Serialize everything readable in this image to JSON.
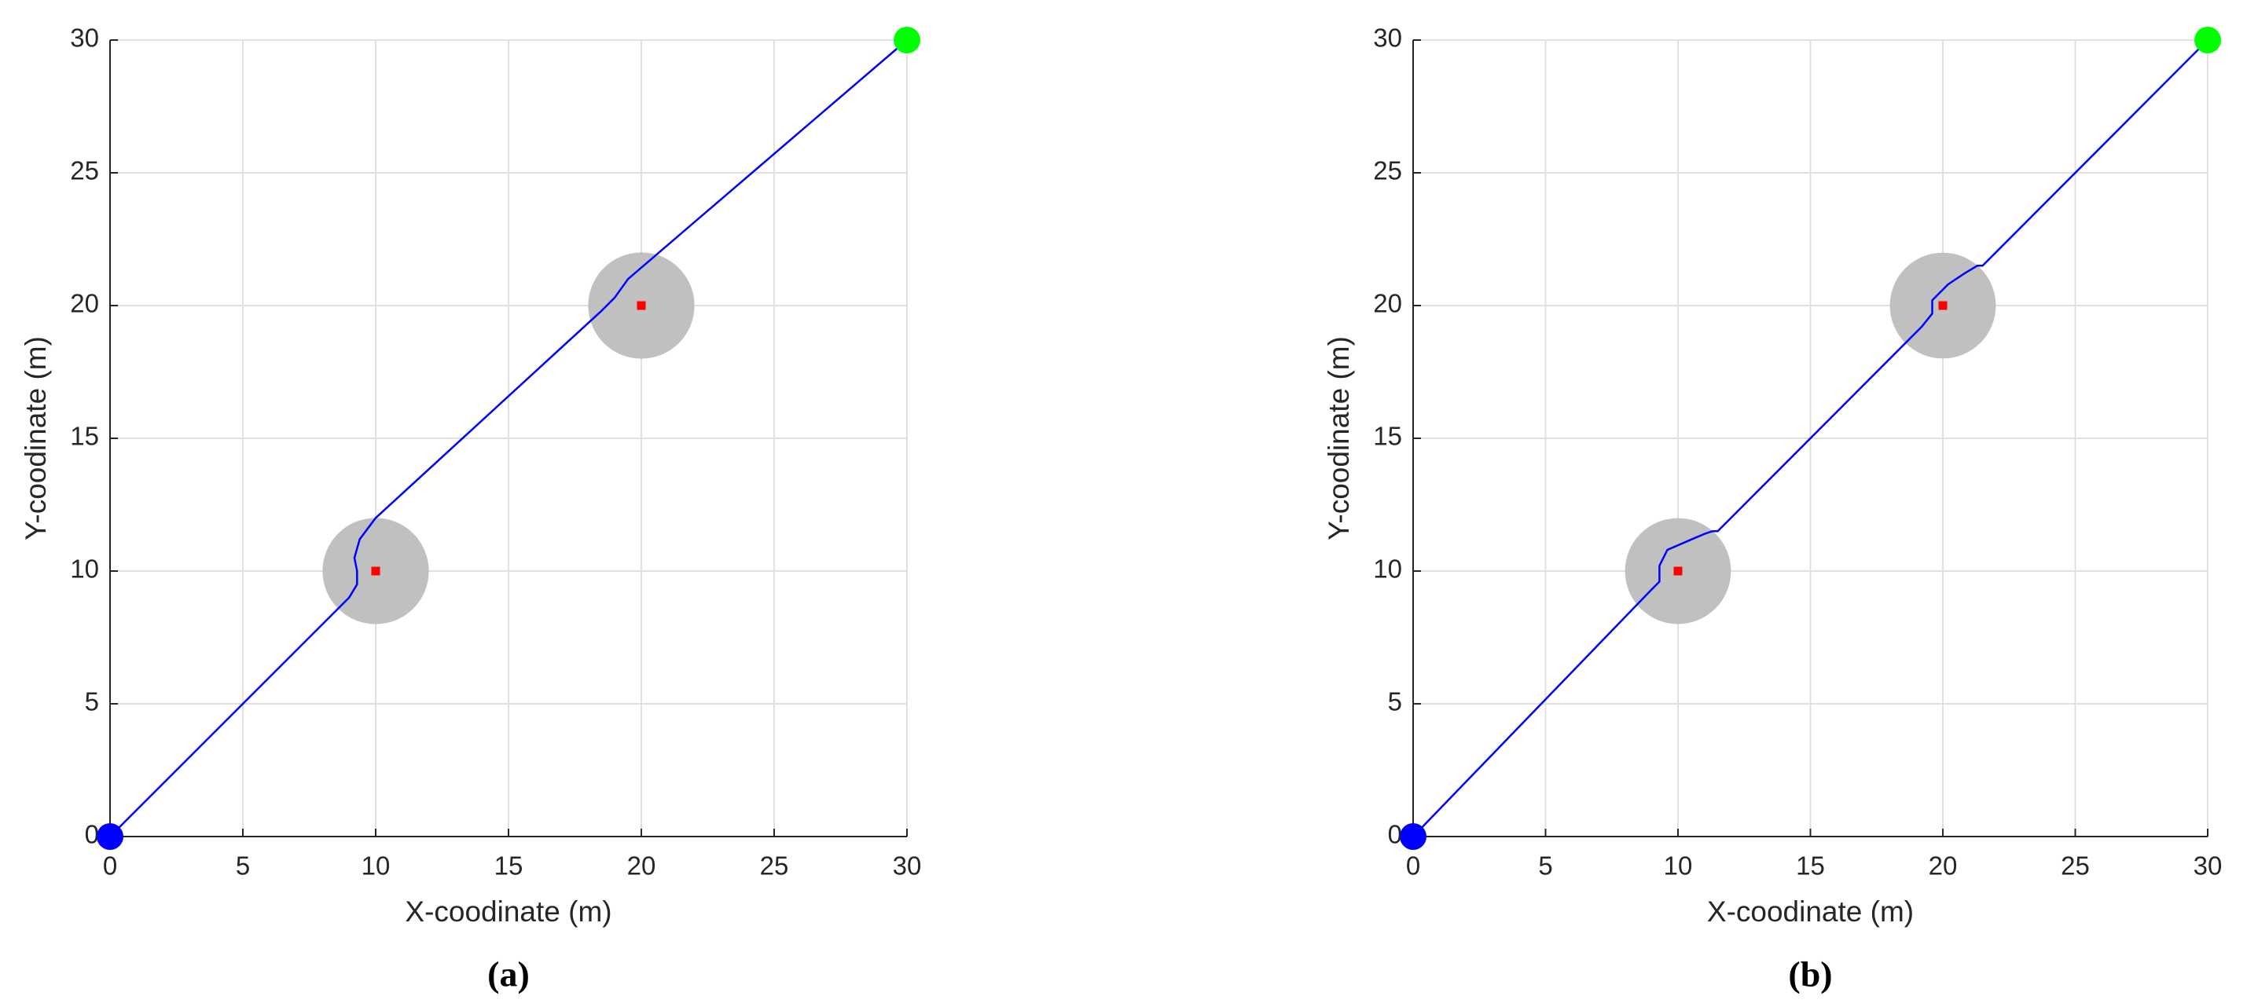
{
  "chart_data": [
    {
      "type": "line",
      "x_label": "X-coodinate (m)",
      "y_label": "Y-coodinate (m)",
      "caption": "(a)",
      "xlim": [
        0,
        30
      ],
      "ylim": [
        0,
        30
      ],
      "xticks": [
        0,
        5,
        10,
        15,
        20,
        25,
        30
      ],
      "yticks": [
        0,
        5,
        10,
        15,
        20,
        25,
        30
      ],
      "grid": true,
      "series": [
        {
          "color": "#0000ff",
          "x": [
            0,
            9,
            9.3,
            9.3,
            9.2,
            9.4,
            10,
            18.5,
            19,
            19.5,
            20.2,
            30
          ],
          "values": [
            0,
            9,
            9.5,
            10,
            10.5,
            11.2,
            12,
            19.8,
            20.3,
            21,
            21.6,
            30
          ]
        }
      ],
      "obstacles": [
        {
          "x": 10,
          "y": 10,
          "r": 2,
          "color": "#c0c0c0",
          "center_color": "#ff0000"
        },
        {
          "x": 20,
          "y": 20,
          "r": 2,
          "color": "#c0c0c0",
          "center_color": "#ff0000"
        }
      ],
      "points": [
        {
          "x": 0,
          "y": 0,
          "color": "#0000ff"
        },
        {
          "x": 30,
          "y": 30,
          "color": "#00ff00"
        }
      ]
    },
    {
      "type": "line",
      "x_label": "X-coodinate (m)",
      "y_label": "Y-coodinate (m)",
      "caption": "(b)",
      "xlim": [
        0,
        30
      ],
      "ylim": [
        0,
        30
      ],
      "xticks": [
        0,
        5,
        10,
        15,
        20,
        25,
        30
      ],
      "yticks": [
        0,
        5,
        10,
        15,
        20,
        25,
        30
      ],
      "grid": true,
      "series": [
        {
          "color": "#0000ff",
          "x": [
            0,
            9,
            9.3,
            9.3,
            9.6,
            10.3,
            11,
            11.3,
            11.5,
            19.2,
            19.6,
            19.6,
            20.2,
            20.8,
            21.3,
            21.5,
            30
          ],
          "values": [
            0,
            9.3,
            9.6,
            10.2,
            10.8,
            11.1,
            11.4,
            11.5,
            11.5,
            19.2,
            19.7,
            20.2,
            20.8,
            21.2,
            21.5,
            21.5,
            30
          ]
        }
      ],
      "obstacles": [
        {
          "x": 10,
          "y": 10,
          "r": 2,
          "color": "#c0c0c0",
          "center_color": "#ff0000"
        },
        {
          "x": 20,
          "y": 20,
          "r": 2,
          "color": "#c0c0c0",
          "center_color": "#ff0000"
        }
      ],
      "points": [
        {
          "x": 0,
          "y": 0,
          "color": "#0000ff"
        },
        {
          "x": 30,
          "y": 30,
          "color": "#00ff00"
        }
      ]
    }
  ]
}
